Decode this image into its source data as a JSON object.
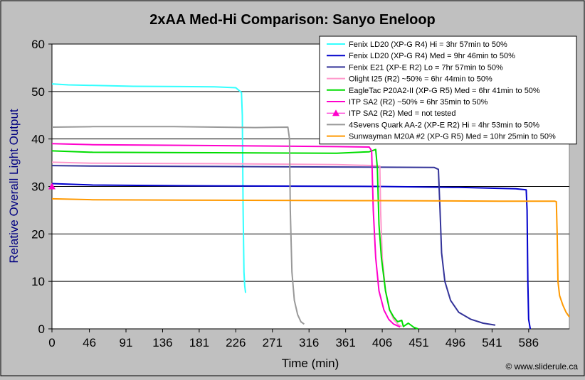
{
  "chart_data": {
    "type": "line",
    "title": "2xAA Med-Hi Comparison: Sanyo Eneloop",
    "xlabel": "Time (min)",
    "ylabel": "Relative Overall Light Output",
    "xlim": [
      0,
      636
    ],
    "ylim": [
      0,
      60
    ],
    "x_ticks": [
      0,
      46,
      91,
      136,
      181,
      226,
      271,
      316,
      361,
      406,
      451,
      496,
      541,
      586
    ],
    "y_ticks": [
      0,
      10,
      20,
      30,
      40,
      50,
      60
    ],
    "grid": "horizontal",
    "legend_position": "top-right",
    "credit": "© www.sliderule.ca",
    "series": [
      {
        "name": "Fenix LD20 (XP-G R4) Hi = 3hr 57min to 50%",
        "color": "#33ffff",
        "points": [
          [
            0,
            51.6
          ],
          [
            20,
            51.4
          ],
          [
            100,
            51.1
          ],
          [
            200,
            51.0
          ],
          [
            226,
            50.8
          ],
          [
            233,
            49.8
          ],
          [
            234,
            45
          ],
          [
            235,
            25
          ],
          [
            236,
            12
          ],
          [
            237,
            9
          ],
          [
            238,
            7.6
          ]
        ]
      },
      {
        "name": "Fenix LD20 (XP-G R4) Med = 9hr 46min to 50%",
        "color": "#0000cc",
        "points": [
          [
            0,
            30.6
          ],
          [
            50,
            30.3
          ],
          [
            200,
            30.1
          ],
          [
            400,
            30.0
          ],
          [
            500,
            29.8
          ],
          [
            570,
            29.5
          ],
          [
            583,
            29.3
          ],
          [
            584,
            25
          ],
          [
            585,
            10
          ],
          [
            586,
            2
          ],
          [
            588,
            0
          ]
        ]
      },
      {
        "name": "Fenix E21 (XP-E R2) Lo = 7hr 57min to 50%",
        "color": "#333399",
        "points": [
          [
            0,
            34.4
          ],
          [
            50,
            34.3
          ],
          [
            200,
            34.2
          ],
          [
            350,
            34.1
          ],
          [
            470,
            34.0
          ],
          [
            475,
            33.6
          ],
          [
            477,
            25
          ],
          [
            479,
            16
          ],
          [
            483,
            10
          ],
          [
            490,
            6
          ],
          [
            500,
            3.5
          ],
          [
            515,
            2
          ],
          [
            530,
            1.2
          ],
          [
            545,
            0.8
          ]
        ]
      },
      {
        "name": "Olight I25 (R2) ~50% = 6hr 44min to 50%",
        "color": "#ff99cc",
        "points": [
          [
            0,
            35.1
          ],
          [
            50,
            34.9
          ],
          [
            200,
            34.8
          ],
          [
            350,
            34.6
          ],
          [
            395,
            34.4
          ],
          [
            403,
            34.3
          ],
          [
            404,
            25
          ],
          [
            406,
            15
          ],
          [
            410,
            8
          ],
          [
            415,
            4
          ],
          [
            420,
            2
          ],
          [
            425,
            1
          ],
          [
            430,
            0.5
          ]
        ]
      },
      {
        "name": "EagleTac P20A2-II (XP-G R5) Med = 6hr 41min to 50%",
        "color": "#00dd00",
        "points": [
          [
            0,
            37.5
          ],
          [
            50,
            37.2
          ],
          [
            200,
            37.1
          ],
          [
            350,
            37.0
          ],
          [
            390,
            37.3
          ],
          [
            398,
            37.8
          ],
          [
            400,
            34
          ],
          [
            402,
            22
          ],
          [
            405,
            15
          ],
          [
            410,
            8
          ],
          [
            415,
            4
          ],
          [
            420,
            2.5
          ],
          [
            425,
            1.5
          ],
          [
            430,
            1.8
          ],
          [
            432,
            0.5
          ],
          [
            438,
            1.2
          ],
          [
            445,
            0.3
          ],
          [
            450,
            0
          ]
        ]
      },
      {
        "name": "ITP SA2 (R2) ~50% = 6hr 35min to 50%",
        "color": "#ff00cc",
        "points": [
          [
            0,
            39.0
          ],
          [
            50,
            38.8
          ],
          [
            200,
            38.6
          ],
          [
            350,
            38.4
          ],
          [
            390,
            38.3
          ],
          [
            393,
            37.5
          ],
          [
            395,
            25
          ],
          [
            398,
            15
          ],
          [
            402,
            8
          ],
          [
            408,
            4
          ],
          [
            414,
            2
          ],
          [
            420,
            1
          ],
          [
            428,
            0.4
          ]
        ]
      },
      {
        "name": "ITP SA2 (R2) Med = not tested",
        "color": "#ff00cc",
        "marker": "triangle",
        "points": [
          [
            0,
            30.0
          ]
        ]
      },
      {
        "name": "4Sevens Quark AA-2 (XP-E R2) Hi = 4hr 53min to 50%",
        "color": "#999999",
        "points": [
          [
            0,
            42.5
          ],
          [
            50,
            42.6
          ],
          [
            150,
            42.6
          ],
          [
            250,
            42.4
          ],
          [
            290,
            42.5
          ],
          [
            292,
            40
          ],
          [
            293,
            25
          ],
          [
            295,
            12
          ],
          [
            298,
            6
          ],
          [
            302,
            3
          ],
          [
            306,
            1.5
          ],
          [
            310,
            1.0
          ]
        ]
      },
      {
        "name": "Sunwayman M20A #2 (XP-G R5) Med = 10hr 25min to 50%",
        "color": "#ff9900",
        "points": [
          [
            0,
            27.4
          ],
          [
            50,
            27.2
          ],
          [
            200,
            27.1
          ],
          [
            400,
            27.0
          ],
          [
            550,
            26.9
          ],
          [
            618,
            26.9
          ],
          [
            620,
            26.8
          ],
          [
            621,
            20
          ],
          [
            622,
            10
          ],
          [
            624,
            7
          ],
          [
            628,
            5
          ],
          [
            632,
            3.5
          ],
          [
            636,
            2.5
          ]
        ]
      }
    ]
  }
}
